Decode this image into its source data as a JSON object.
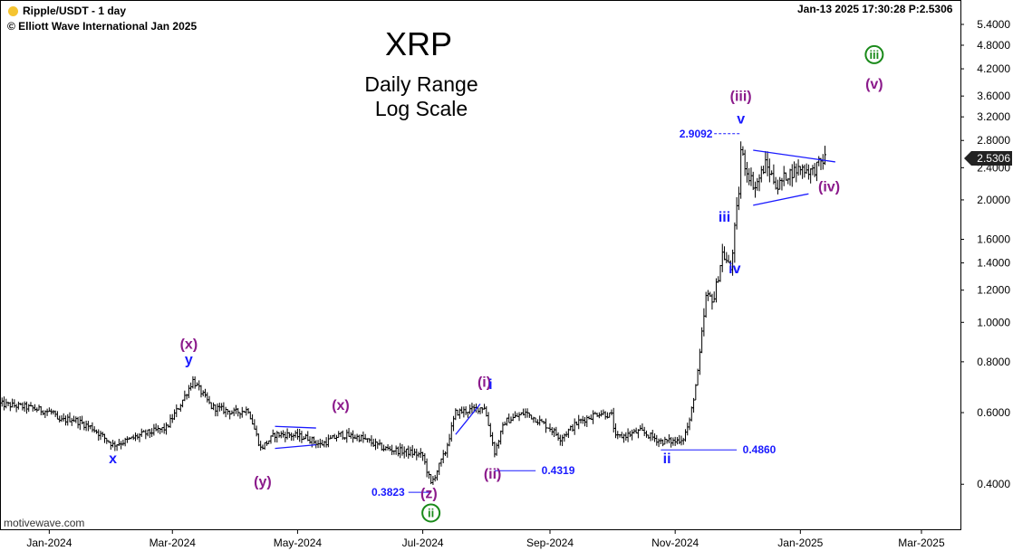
{
  "header": {
    "symbol": "Ripple/USDT - 1 day",
    "copyright": "© Elliott Wave International Jan 2025",
    "timestamp": "Jan-13 2025  17:30:28  P:2.5306",
    "dot_color": "#f5c431"
  },
  "title": {
    "main": "XRP",
    "line1": "Daily Range",
    "line2": "Log Scale"
  },
  "brand": "motivewave.com",
  "colors": {
    "blue": "#1a1aff",
    "purple": "#8b1a8b",
    "green": "#1a8a1a",
    "bars": "#000000"
  },
  "chart_data": {
    "type": "ohlc",
    "scale": "log",
    "title": "XRP",
    "subtitle": "Daily Range Log Scale",
    "ylim": [
      0.31,
      6.2
    ],
    "xlim": [
      "2023-12-08",
      "2025-03-20"
    ],
    "x_ticks": [
      {
        "date": "2024-01-01",
        "label": "Jan-2024"
      },
      {
        "date": "2024-03-01",
        "label": "Mar-2024"
      },
      {
        "date": "2024-05-01",
        "label": "May-2024"
      },
      {
        "date": "2024-07-01",
        "label": "Jul-2024"
      },
      {
        "date": "2024-09-01",
        "label": "Sep-2024"
      },
      {
        "date": "2024-11-01",
        "label": "Nov-2024"
      },
      {
        "date": "2025-01-01",
        "label": "Jan-2025"
      },
      {
        "date": "2025-03-01",
        "label": "Mar-2025"
      }
    ],
    "y_ticks": [
      "5.4000",
      "4.8000",
      "4.2000",
      "3.6000",
      "3.2000",
      "2.8000",
      "2.4000",
      "2.0000",
      "1.6000",
      "1.4000",
      "1.2000",
      "1.0000",
      "0.8000",
      "0.6000",
      "0.4000"
    ],
    "last_price": "2.5306",
    "closes": [
      [
        "2023-12-08",
        0.63
      ],
      [
        "2023-12-20",
        0.62
      ],
      [
        "2024-01-03",
        0.6
      ],
      [
        "2024-01-05",
        0.57
      ],
      [
        "2024-01-12",
        0.58
      ],
      [
        "2024-01-22",
        0.55
      ],
      [
        "2024-02-01",
        0.5
      ],
      [
        "2024-02-07",
        0.51
      ],
      [
        "2024-02-15",
        0.53
      ],
      [
        "2024-02-27",
        0.55
      ],
      [
        "2024-03-05",
        0.63
      ],
      [
        "2024-03-11",
        0.72
      ],
      [
        "2024-03-20",
        0.62
      ],
      [
        "2024-03-31",
        0.6
      ],
      [
        "2024-04-07",
        0.61
      ],
      [
        "2024-04-13",
        0.49
      ],
      [
        "2024-04-20",
        0.53
      ],
      [
        "2024-04-26",
        0.53
      ],
      [
        "2024-05-06",
        0.52
      ],
      [
        "2024-05-12",
        0.5
      ],
      [
        "2024-05-22",
        0.53
      ],
      [
        "2024-06-01",
        0.52
      ],
      [
        "2024-06-12",
        0.49
      ],
      [
        "2024-06-24",
        0.48
      ],
      [
        "2024-07-01",
        0.47
      ],
      [
        "2024-07-05",
        0.4
      ],
      [
        "2024-07-12",
        0.48
      ],
      [
        "2024-07-17",
        0.6
      ],
      [
        "2024-07-25",
        0.61
      ],
      [
        "2024-07-31",
        0.62
      ],
      [
        "2024-08-05",
        0.48
      ],
      [
        "2024-08-10",
        0.57
      ],
      [
        "2024-08-20",
        0.6
      ],
      [
        "2024-09-01",
        0.55
      ],
      [
        "2024-09-06",
        0.52
      ],
      [
        "2024-09-15",
        0.57
      ],
      [
        "2024-09-25",
        0.6
      ],
      [
        "2024-10-01",
        0.59
      ],
      [
        "2024-10-03",
        0.52
      ],
      [
        "2024-10-15",
        0.54
      ],
      [
        "2024-10-25",
        0.51
      ],
      [
        "2024-11-01",
        0.51
      ],
      [
        "2024-11-05",
        0.52
      ],
      [
        "2024-11-08",
        0.57
      ],
      [
        "2024-11-12",
        0.75
      ],
      [
        "2024-11-16",
        1.15
      ],
      [
        "2024-11-20",
        1.15
      ],
      [
        "2024-11-24",
        1.48
      ],
      [
        "2024-11-28",
        1.35
      ],
      [
        "2024-12-02",
        2.1
      ],
      [
        "2024-12-03",
        2.65
      ],
      [
        "2024-12-06",
        2.35
      ],
      [
        "2024-12-10",
        2.15
      ],
      [
        "2024-12-15",
        2.45
      ],
      [
        "2024-12-21",
        2.15
      ],
      [
        "2024-12-25",
        2.3
      ],
      [
        "2025-01-01",
        2.4
      ],
      [
        "2025-01-07",
        2.35
      ],
      [
        "2025-01-10",
        2.45
      ],
      [
        "2025-01-13",
        2.53
      ]
    ],
    "wave_labels": [
      {
        "text": "(x)",
        "date": "2024-03-09",
        "price": 0.86,
        "color": "purple"
      },
      {
        "text": "y",
        "date": "2024-03-09",
        "price": 0.79,
        "color": "blue"
      },
      {
        "text": "x",
        "date": "2024-02-01",
        "price": 0.45,
        "color": "blue"
      },
      {
        "text": "(y)",
        "date": "2024-04-14",
        "price": 0.395,
        "color": "purple"
      },
      {
        "text": "(x)",
        "date": "2024-05-22",
        "price": 0.61,
        "color": "purple"
      },
      {
        "text": "(z)",
        "date": "2024-07-04",
        "price": 0.37,
        "color": "purple"
      },
      {
        "text": "(i)",
        "date": "2024-07-31",
        "price": 0.695,
        "color": "purple"
      },
      {
        "text": "i",
        "date": "2024-08-03",
        "price": 0.685,
        "color": "blue"
      },
      {
        "text": "(ii)",
        "date": "2024-08-04",
        "price": 0.413,
        "color": "purple"
      },
      {
        "text": "ii",
        "date": "2024-10-28",
        "price": 0.45,
        "color": "blue"
      },
      {
        "text": "iii",
        "date": "2024-11-25",
        "price": 1.77,
        "color": "blue"
      },
      {
        "text": "iv",
        "date": "2024-11-30",
        "price": 1.32,
        "color": "blue"
      },
      {
        "text": "(iii)",
        "date": "2024-12-03",
        "price": 3.5,
        "color": "purple"
      },
      {
        "text": "v",
        "date": "2024-12-03",
        "price": 3.08,
        "color": "blue"
      },
      {
        "text": "(iv)",
        "date": "2025-01-15",
        "price": 2.1,
        "color": "purple"
      },
      {
        "text": "(v)",
        "date": "2025-02-06",
        "price": 3.75,
        "color": "purple"
      }
    ],
    "circled_labels": [
      {
        "text": "ii",
        "date": "2024-07-05",
        "price": 0.34
      },
      {
        "text": "iii",
        "date": "2025-02-06",
        "price": 4.55
      }
    ],
    "price_callouts": [
      {
        "text": "2.9092",
        "price": 2.9092,
        "from": "2024-11-20",
        "to": "2024-12-03",
        "label_date": "2024-11-21",
        "label_side": "left",
        "style": "dashed"
      },
      {
        "text": "0.3823",
        "price": 0.3823,
        "from": "2024-06-24",
        "to": "2024-07-05",
        "label_date": "2024-06-24",
        "label_side": "left",
        "style": "solid"
      },
      {
        "text": "0.4319",
        "price": 0.4319,
        "from": "2024-08-05",
        "to": "2024-08-25",
        "label_date": "2024-08-27",
        "label_side": "right",
        "style": "solid"
      },
      {
        "text": "0.4860",
        "price": 0.486,
        "from": "2024-10-25",
        "to": "2024-12-01",
        "label_date": "2024-12-03",
        "label_side": "right",
        "style": "solid"
      }
    ],
    "trendlines": [
      {
        "from": [
          "2024-04-20",
          0.555
        ],
        "to": [
          "2024-05-10",
          0.55
        ]
      },
      {
        "from": [
          "2024-04-20",
          0.49
        ],
        "to": [
          "2024-05-10",
          0.5
        ]
      },
      {
        "from": [
          "2024-07-17",
          0.53
        ],
        "to": [
          "2024-07-29",
          0.63
        ]
      },
      {
        "from": [
          "2024-12-09",
          2.65
        ],
        "to": [
          "2025-01-18",
          2.48
        ]
      },
      {
        "from": [
          "2024-12-09",
          1.94
        ],
        "to": [
          "2025-01-05",
          2.07
        ]
      }
    ]
  }
}
